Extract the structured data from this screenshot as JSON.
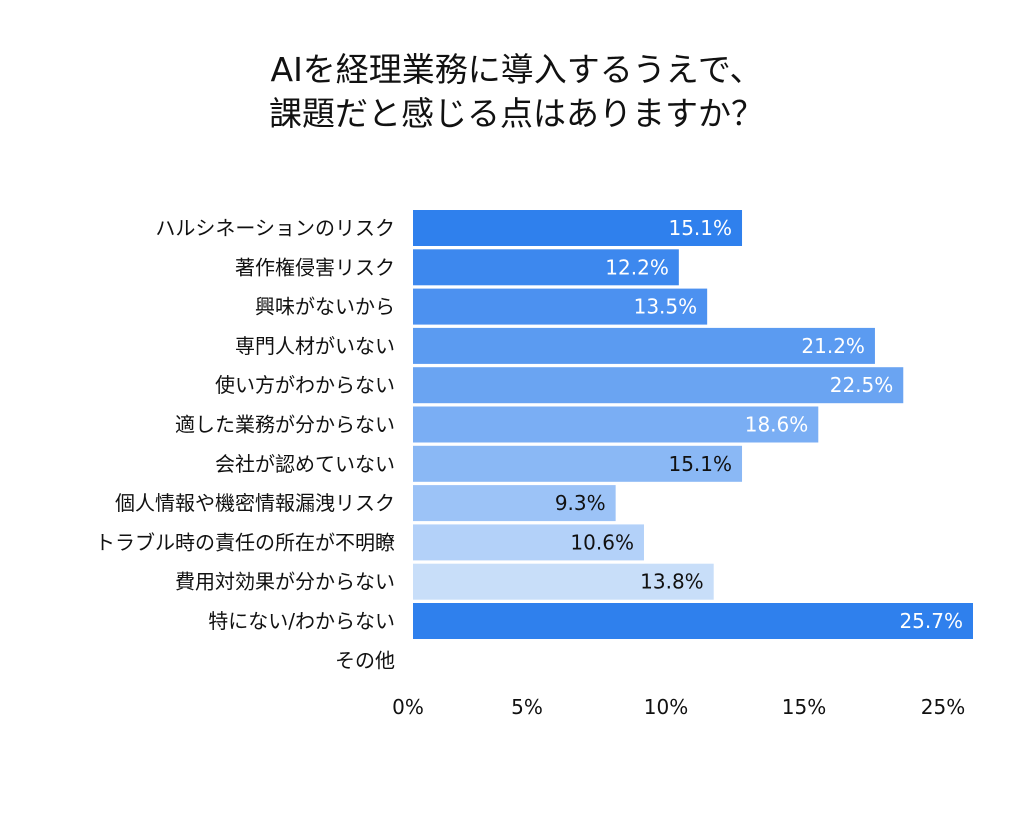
{
  "chart_data": {
    "type": "bar",
    "orientation": "horizontal",
    "title_lines": [
      "AIを経理業務に導入するうえで、",
      "課題だと感じる点はありますか？"
    ],
    "categories": [
      "ハルシネーションのリスク",
      "著作権侵害リスク",
      "興味がないから",
      "専門人材がいない",
      "使い方がわからない",
      "適した業務が分からない",
      "会社が認めていない",
      "個人情報や機密情報漏洩リスク",
      "トラブル時の責任の所在が不明瞭",
      "費用対効果が分からない",
      "特にない/わからない",
      "その他"
    ],
    "values": [
      15.1,
      12.2,
      13.5,
      21.2,
      22.5,
      18.6,
      15.1,
      9.3,
      10.6,
      13.8,
      25.7,
      null
    ],
    "value_labels": [
      "15.1%",
      "12.2%",
      "13.5%",
      "21.2%",
      "22.5%",
      "18.6%",
      "15.1%",
      "9.3%",
      "10.6%",
      "13.8%",
      "25.7%",
      ""
    ],
    "bar_colors": [
      "#2f80ed",
      "#3d88ee",
      "#4c91f0",
      "#5b9bf1",
      "#6aa4f2",
      "#7aaef4",
      "#8ab8f5",
      "#9cc3f7",
      "#b3d1f9",
      "#c8def9",
      "#2f80ed",
      "#ffffff"
    ],
    "label_colors": [
      "#ffffff",
      "#ffffff",
      "#ffffff",
      "#ffffff",
      "#ffffff",
      "#ffffff",
      "#111111",
      "#111111",
      "#111111",
      "#111111",
      "#ffffff",
      "#111111"
    ],
    "x_ticks": [
      0,
      5,
      10,
      15,
      25
    ],
    "x_tick_labels": [
      "0%",
      "5%",
      "10%",
      "15%",
      "25%"
    ],
    "xlim": [
      0,
      25.7
    ],
    "grid": false,
    "legend": "none"
  }
}
